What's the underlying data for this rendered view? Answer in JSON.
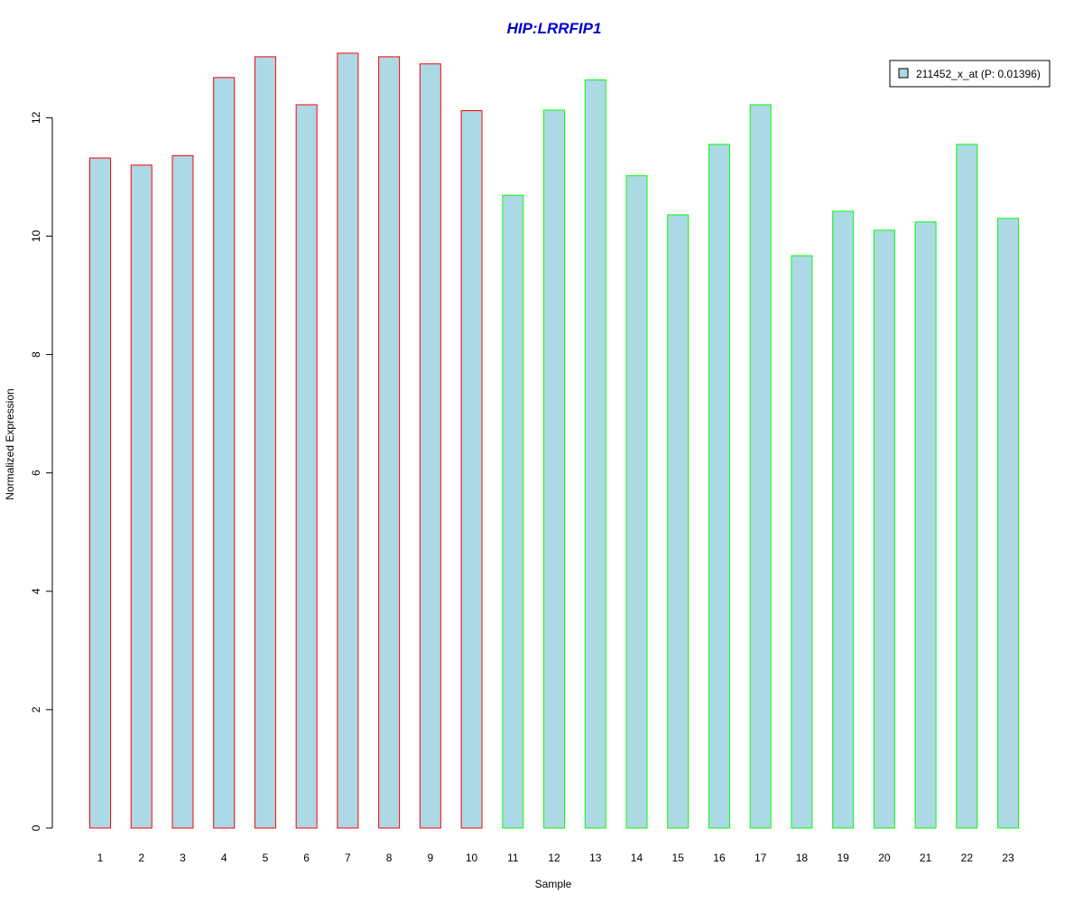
{
  "chart_data": {
    "type": "bar",
    "title": "HIP:LRRFIP1",
    "xlabel": "Sample",
    "ylabel": "Normalized Expression",
    "categories": [
      "1",
      "2",
      "3",
      "4",
      "5",
      "6",
      "7",
      "8",
      "9",
      "10",
      "11",
      "12",
      "13",
      "14",
      "15",
      "16",
      "17",
      "18",
      "19",
      "20",
      "21",
      "22",
      "23"
    ],
    "series": [
      {
        "name": "211452_x_at (P: 0.01396)",
        "values": [
          11.32,
          11.2,
          11.36,
          12.68,
          13.03,
          12.22,
          13.09,
          13.03,
          12.91,
          12.12,
          10.69,
          12.13,
          12.64,
          11.02,
          10.36,
          11.55,
          12.22,
          9.67,
          10.42,
          10.1,
          10.24,
          11.55,
          10.3
        ]
      }
    ],
    "ylim": [
      0,
      13.4
    ],
    "yticks": [
      0,
      2,
      4,
      6,
      8,
      10,
      12
    ],
    "grid": false,
    "legend_position": "top-right",
    "bar_fill": "#add8e6",
    "group_border_colors": [
      "#ff0000",
      "#ff0000",
      "#ff0000",
      "#ff0000",
      "#ff0000",
      "#ff0000",
      "#ff0000",
      "#ff0000",
      "#ff0000",
      "#ff0000",
      "#00ff00",
      "#00ff00",
      "#00ff00",
      "#00ff00",
      "#00ff00",
      "#00ff00",
      "#00ff00",
      "#00ff00",
      "#00ff00",
      "#00ff00",
      "#00ff00",
      "#00ff00",
      "#00ff00"
    ],
    "title_color": "#0000cc"
  }
}
